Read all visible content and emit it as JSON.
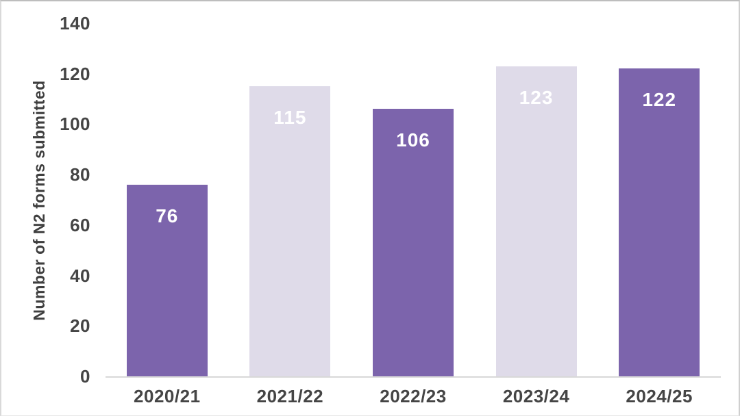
{
  "frame": {
    "background": "#ffffff",
    "border_color": "#c9c9c9"
  },
  "chart_data": {
    "type": "bar",
    "title": "",
    "categories": [
      "2020/21",
      "2021/22",
      "2022/23",
      "2023/24",
      "2024/25"
    ],
    "values": [
      76,
      115,
      106,
      123,
      122
    ],
    "data_labels": [
      "76",
      "115",
      "106",
      "123",
      "122"
    ],
    "xlabel": "",
    "ylabel": "Number of N2 forms submitted",
    "ylim": [
      0,
      140
    ],
    "yticks": [
      0,
      20,
      40,
      60,
      80,
      100,
      120,
      140
    ],
    "grid": false,
    "legend": "none",
    "bar_colors": [
      "#7c64ac",
      "#dfdbe9",
      "#7c64ac",
      "#dfdbe9",
      "#7c64ac"
    ],
    "value_label_color": "#ffffff",
    "axis_line_color": "#d8d8d8",
    "tick_label_color": "#454545",
    "ylabel_color": "#3f3f3f"
  }
}
